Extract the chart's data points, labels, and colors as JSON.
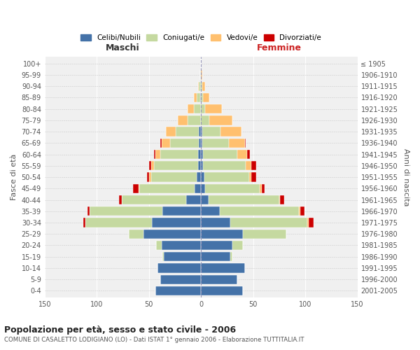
{
  "age_groups": [
    "100+",
    "95-99",
    "90-94",
    "85-89",
    "80-84",
    "75-79",
    "70-74",
    "65-69",
    "60-64",
    "55-59",
    "50-54",
    "45-49",
    "40-44",
    "35-39",
    "30-34",
    "25-29",
    "20-24",
    "15-19",
    "10-14",
    "5-9",
    "0-4"
  ],
  "birth_years": [
    "≤ 1905",
    "1906-1910",
    "1911-1915",
    "1916-1920",
    "1921-1925",
    "1926-1930",
    "1931-1935",
    "1936-1940",
    "1941-1945",
    "1946-1950",
    "1951-1955",
    "1956-1960",
    "1961-1965",
    "1966-1970",
    "1971-1975",
    "1976-1980",
    "1981-1985",
    "1986-1990",
    "1991-1995",
    "1996-2000",
    "2001-2005"
  ],
  "males": {
    "celibi": [
      0,
      0,
      0,
      1,
      0,
      0,
      2,
      2,
      3,
      3,
      4,
      6,
      14,
      37,
      47,
      55,
      38,
      36,
      42,
      39,
      44
    ],
    "coniugati": [
      0,
      1,
      2,
      3,
      7,
      13,
      22,
      28,
      36,
      42,
      44,
      53,
      62,
      70,
      64,
      14,
      5,
      1,
      0,
      0,
      0
    ],
    "vedovi": [
      0,
      0,
      1,
      3,
      6,
      9,
      10,
      8,
      5,
      3,
      2,
      1,
      0,
      0,
      0,
      0,
      0,
      0,
      0,
      0,
      0
    ],
    "divorziati": [
      0,
      0,
      0,
      0,
      0,
      0,
      0,
      1,
      1,
      2,
      2,
      5,
      3,
      2,
      2,
      0,
      0,
      0,
      0,
      0,
      0
    ]
  },
  "females": {
    "nubili": [
      0,
      0,
      0,
      0,
      0,
      0,
      1,
      1,
      2,
      2,
      3,
      4,
      7,
      18,
      28,
      40,
      30,
      28,
      42,
      35,
      40
    ],
    "coniugate": [
      0,
      0,
      1,
      2,
      4,
      8,
      18,
      26,
      33,
      41,
      43,
      52,
      68,
      76,
      74,
      42,
      10,
      2,
      0,
      0,
      0
    ],
    "vedove": [
      0,
      1,
      3,
      6,
      16,
      22,
      20,
      15,
      9,
      5,
      2,
      2,
      1,
      1,
      1,
      0,
      0,
      0,
      0,
      0,
      0
    ],
    "divorziate": [
      0,
      0,
      0,
      0,
      0,
      0,
      0,
      1,
      3,
      5,
      5,
      3,
      4,
      4,
      5,
      0,
      0,
      0,
      0,
      0,
      0
    ]
  },
  "color_celibi": "#4472a8",
  "color_coniugati": "#c5d9a0",
  "color_vedovi": "#ffc06f",
  "color_divorziati": "#cc0000",
  "title": "Popolazione per età, sesso e stato civile - 2006",
  "subtitle": "COMUNE DI CASALETTO LODIGIANO (LO) - Dati ISTAT 1° gennaio 2006 - Elaborazione TUTTITALIA.IT",
  "xlabel_left": "Maschi",
  "xlabel_right": "Femmine",
  "ylabel_left": "Fasce di età",
  "ylabel_right": "Anni di nascita",
  "xlim": 150,
  "legend_labels": [
    "Celibi/Nubili",
    "Coniugati/e",
    "Vedovi/e",
    "Divorziati/e"
  ],
  "bg_color": "#f0f0f0"
}
